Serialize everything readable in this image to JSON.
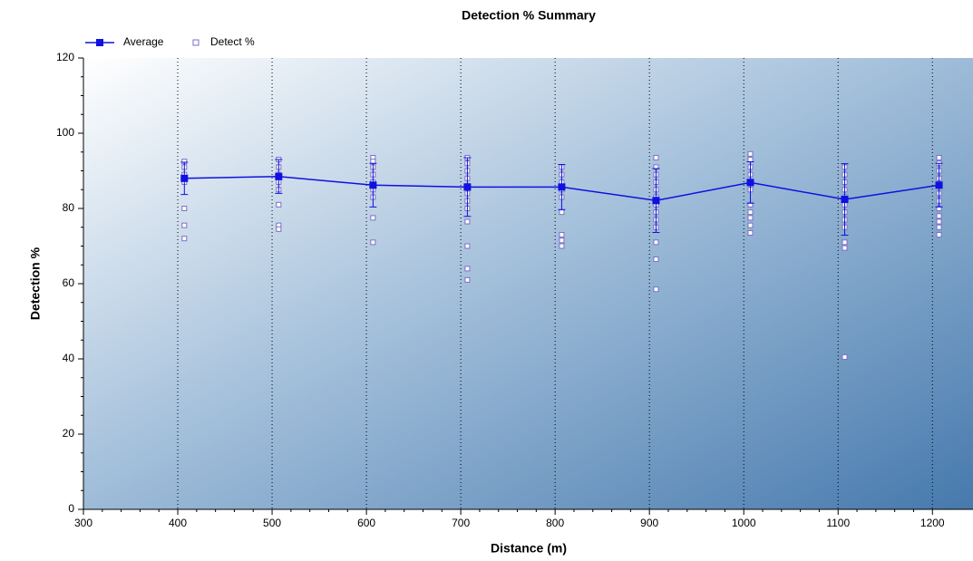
{
  "chart_data": {
    "type": "scatter",
    "title": "Detection % Summary",
    "x_label": "Distance (m)",
    "y_label": "Detection %",
    "xlim": [
      300,
      1243
    ],
    "xticks": [
      300,
      400,
      500,
      600,
      700,
      800,
      900,
      1000,
      1100,
      1200
    ],
    "ylim": [
      0,
      120
    ],
    "yticks": [
      0,
      20,
      40,
      60,
      80,
      100,
      120
    ],
    "grid": true,
    "series": [
      {
        "name": "Average",
        "color": "#1010e0",
        "kind": "line",
        "x": [
          407,
          507,
          607,
          707,
          807,
          907,
          1007,
          1107,
          1207
        ],
        "values": [
          88,
          88.5,
          86.2,
          85.7,
          85.7,
          82.1,
          86.9,
          82.4,
          86.2
        ],
        "errors": [
          4.3,
          4.5,
          5.8,
          7.8,
          6,
          8.5,
          5.5,
          9.5,
          5.8
        ]
      },
      {
        "name": "Detect %",
        "color": "#7a6fc8",
        "kind": "points",
        "x": [
          407,
          407,
          407,
          407,
          407,
          407,
          407,
          507,
          507,
          507,
          507,
          507,
          507,
          507,
          507,
          607,
          607,
          607,
          607,
          607,
          607,
          607,
          607,
          607,
          707,
          707,
          707,
          707,
          707,
          707,
          707,
          707,
          707,
          707,
          707,
          707,
          807,
          807,
          807,
          807,
          807,
          807,
          807,
          807,
          807,
          907,
          907,
          907,
          907,
          907,
          907,
          907,
          907,
          907,
          907,
          907,
          907,
          907,
          1007,
          1007,
          1007,
          1007,
          1007,
          1007,
          1007,
          1007,
          1007,
          1007,
          1007,
          1107,
          1107,
          1107,
          1107,
          1107,
          1107,
          1107,
          1107,
          1107,
          1107,
          1107,
          1107,
          1207,
          1207,
          1207,
          1207,
          1207,
          1207,
          1207,
          1207,
          1207,
          1207,
          1207,
          1207
        ],
        "values": [
          92.5,
          91,
          89,
          87,
          80,
          75.5,
          72,
          93,
          91,
          89,
          87,
          85,
          81,
          75.5,
          74.5,
          93.5,
          92.5,
          91,
          89,
          87,
          85,
          83,
          77.5,
          71,
          93.5,
          92,
          90,
          88,
          86,
          84,
          82,
          80,
          76.5,
          70,
          64,
          61,
          91,
          89,
          87,
          85,
          83,
          79,
          73,
          71.5,
          70,
          93.5,
          91,
          89,
          87,
          85,
          83,
          81,
          79,
          77,
          75,
          71,
          66.5,
          58.5,
          94.5,
          93,
          91,
          89,
          87,
          85,
          81,
          79,
          77.5,
          75.5,
          73.5,
          91,
          89,
          87,
          85,
          83,
          81,
          79,
          77,
          75,
          71,
          69.5,
          40.5,
          93.5,
          92,
          90,
          88,
          86,
          84,
          82,
          80,
          78,
          76.5,
          75,
          73
        ]
      }
    ]
  }
}
